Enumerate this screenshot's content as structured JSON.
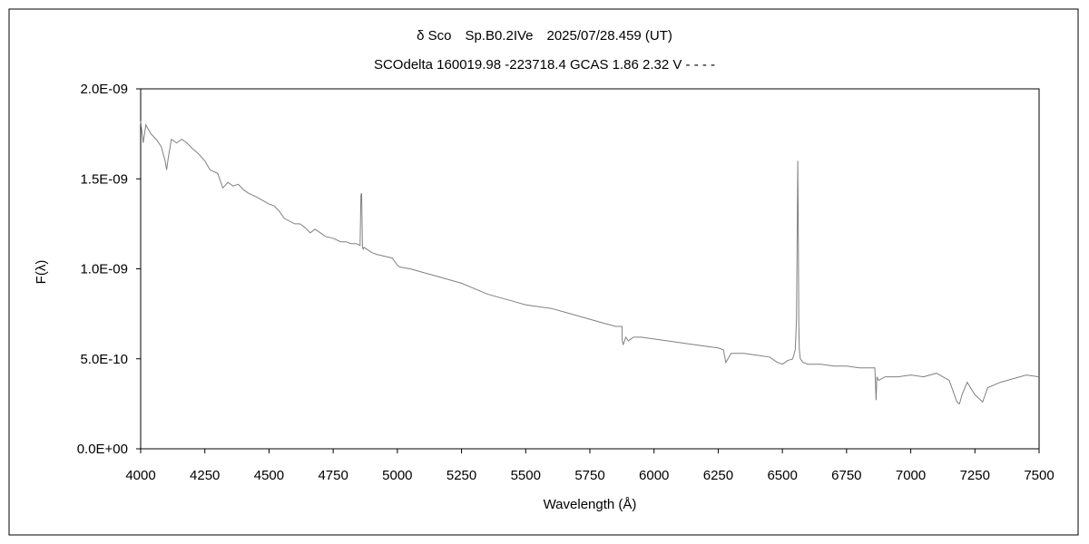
{
  "chart_data": {
    "type": "line",
    "title": "δ Sco　Sp.B0.2IVe　2025/07/28.459 (UT)",
    "subtitle": "SCOdelta 160019.98 -223718.4 GCAS 1.86 2.32 V - - - -",
    "xlabel": "Wavelength (Å)",
    "ylabel": "F(λ)",
    "xlim": [
      4000,
      7500
    ],
    "ylim": [
      0,
      2e-09
    ],
    "x_ticks": [
      "4000",
      "4250",
      "4500",
      "4750",
      "5000",
      "5250",
      "5500",
      "5750",
      "6000",
      "6250",
      "6500",
      "6750",
      "7000",
      "7250",
      "7500"
    ],
    "y_ticks": [
      "0.0E+00",
      "5.0E-10",
      "1.0E-09",
      "1.5E-09",
      "2.0E-09"
    ],
    "grid": false,
    "legend": "none",
    "line_color": "#808080",
    "series": [
      {
        "x": [
          4000,
          4010,
          4020,
          4040,
          4060,
          4080,
          4095,
          4101,
          4108,
          4120,
          4140,
          4160,
          4180,
          4200,
          4225,
          4250,
          4270,
          4300,
          4320,
          4340,
          4360,
          4380,
          4400,
          4420,
          4450,
          4475,
          4500,
          4520,
          4540,
          4560,
          4600,
          4620,
          4640,
          4660,
          4680,
          4700,
          4720,
          4750,
          4780,
          4800,
          4820,
          4840,
          4855,
          4858,
          4861,
          4864,
          4867,
          4870,
          4880,
          4900,
          4920,
          4950,
          4980,
          5000,
          5010,
          5050,
          5100,
          5150,
          5200,
          5250,
          5300,
          5350,
          5400,
          5450,
          5500,
          5550,
          5600,
          5650,
          5700,
          5750,
          5800,
          5850,
          5875,
          5876,
          5880,
          5890,
          5900,
          5920,
          5950,
          6000,
          6050,
          6100,
          6150,
          6200,
          6250,
          6270,
          6280,
          6300,
          6350,
          6400,
          6450,
          6480,
          6500,
          6520,
          6540,
          6550,
          6555,
          6560,
          6562,
          6564,
          6566,
          6570,
          6580,
          6600,
          6650,
          6700,
          6750,
          6800,
          6860,
          6865,
          6868,
          6875,
          6900,
          6950,
          7000,
          7050,
          7100,
          7150,
          7180,
          7190,
          7200,
          7220,
          7250,
          7280,
          7300,
          7350,
          7400,
          7450,
          7500
        ],
        "y": [
          1.82e-09,
          1.7e-09,
          1.8e-09,
          1.75e-09,
          1.72e-09,
          1.68e-09,
          1.6e-09,
          1.55e-09,
          1.62e-09,
          1.72e-09,
          1.7e-09,
          1.72e-09,
          1.7e-09,
          1.67e-09,
          1.64e-09,
          1.6e-09,
          1.55e-09,
          1.53e-09,
          1.45e-09,
          1.48e-09,
          1.46e-09,
          1.47e-09,
          1.44e-09,
          1.42e-09,
          1.4e-09,
          1.38e-09,
          1.36e-09,
          1.35e-09,
          1.32e-09,
          1.28e-09,
          1.25e-09,
          1.25e-09,
          1.23e-09,
          1.2e-09,
          1.22e-09,
          1.2e-09,
          1.18e-09,
          1.17e-09,
          1.15e-09,
          1.15e-09,
          1.14e-09,
          1.14e-09,
          1.13e-09,
          1.41e-09,
          1.42e-09,
          1.12e-09,
          1.11e-09,
          1.12e-09,
          1.11e-09,
          1.09e-09,
          1.08e-09,
          1.07e-09,
          1.06e-09,
          1.02e-09,
          1.01e-09,
          1e-09,
          9.8e-10,
          9.6e-10,
          9.4e-10,
          9.2e-10,
          8.9e-10,
          8.6e-10,
          8.4e-10,
          8.2e-10,
          8e-10,
          7.9e-10,
          7.8e-10,
          7.6e-10,
          7.4e-10,
          7.2e-10,
          7e-10,
          6.8e-10,
          6.8e-10,
          6e-10,
          5.8e-10,
          6.2e-10,
          6e-10,
          6.2e-10,
          6.2e-10,
          6.1e-10,
          6e-10,
          5.9e-10,
          5.8e-10,
          5.7e-10,
          5.6e-10,
          5.5e-10,
          4.8e-10,
          5.3e-10,
          5.3e-10,
          5.2e-10,
          5.1e-10,
          4.8e-10,
          4.7e-10,
          4.9e-10,
          5e-10,
          5.5e-10,
          7.2e-10,
          1.6e-09,
          1.2e-09,
          7e-10,
          5.5e-10,
          5e-10,
          4.8e-10,
          4.7e-10,
          4.7e-10,
          4.6e-10,
          4.6e-10,
          4.5e-10,
          4.5e-10,
          2.7e-10,
          4e-10,
          3.8e-10,
          4e-10,
          4e-10,
          4.1e-10,
          4e-10,
          4.2e-10,
          3.8e-10,
          2.6e-10,
          2.5e-10,
          3e-10,
          3.7e-10,
          3e-10,
          2.6e-10,
          3.4e-10,
          3.7e-10,
          3.9e-10,
          4.1e-10,
          4e-10
        ]
      }
    ]
  }
}
